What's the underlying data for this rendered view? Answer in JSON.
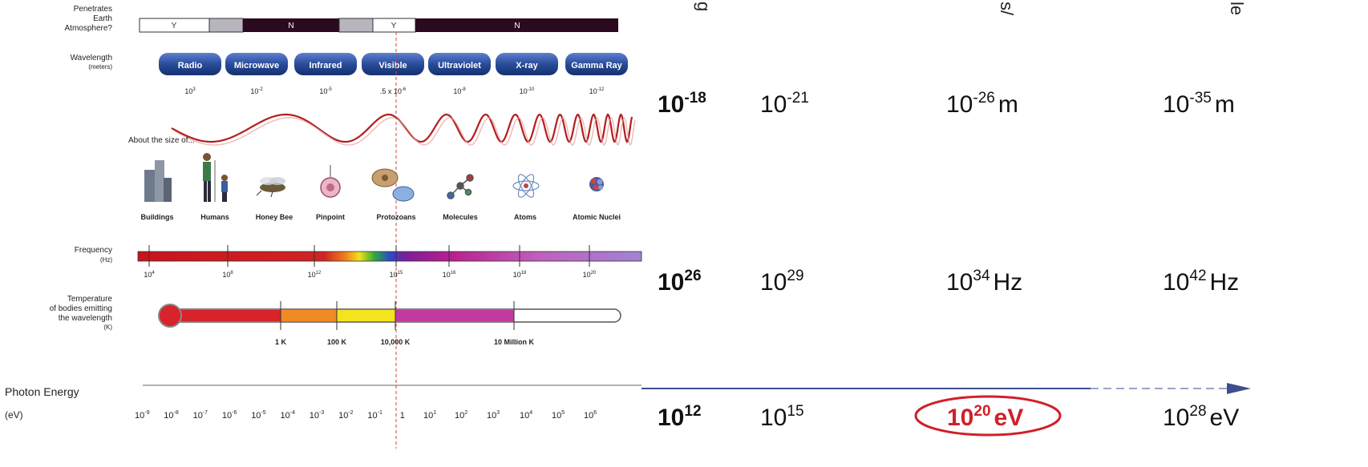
{
  "atmosphere": {
    "label_lines": [
      "Penetrates",
      "Earth",
      "Atmosphere?"
    ],
    "segments": [
      "Y",
      "",
      "N",
      "",
      "Y",
      "N"
    ]
  },
  "wavelength": {
    "label": "Wavelength",
    "unit": "(meters)",
    "bands": [
      "Radio",
      "Microwave",
      "Infrared",
      "Visible",
      "Ultraviolet",
      "X-ray",
      "Gamma Ray"
    ],
    "values": [
      {
        "base": "10",
        "exp": "3"
      },
      {
        "base": "10",
        "exp": "-2"
      },
      {
        "base": "10",
        "exp": "-5"
      },
      {
        "base": ".5 x 10",
        "exp": "-6"
      },
      {
        "base": "10",
        "exp": "-8"
      },
      {
        "base": "10",
        "exp": "-10"
      },
      {
        "base": "10",
        "exp": "-12"
      }
    ]
  },
  "size_label": "About the size of...",
  "objects": [
    "Buildings",
    "Humans",
    "Honey Bee",
    "Pinpoint",
    "Protozoans",
    "Molecules",
    "Atoms",
    "Atomic Nuclei"
  ],
  "frequency": {
    "label": "Frequency",
    "unit": "(Hz)",
    "ticks": [
      {
        "base": "10",
        "exp": "4"
      },
      {
        "base": "10",
        "exp": "8"
      },
      {
        "base": "10",
        "exp": "12"
      },
      {
        "base": "10",
        "exp": "15"
      },
      {
        "base": "10",
        "exp": "16"
      },
      {
        "base": "10",
        "exp": "18"
      },
      {
        "base": "10",
        "exp": "20"
      }
    ]
  },
  "temperature": {
    "label_lines": [
      "Temperature",
      "of bodies emitting",
      "the wavelength"
    ],
    "unit": "(K)",
    "marks": [
      "1 K",
      "100 K",
      "10,000 K",
      "10 Million K"
    ]
  },
  "photon": {
    "label": "Photon Energy",
    "unit": "(eV)",
    "exps": [
      "-9",
      "-8",
      "-7",
      "-6",
      "-5",
      "-4",
      "-3",
      "-2",
      "-1"
    ],
    "one": "1",
    "pos_exps": [
      "1",
      "2",
      "3",
      "4",
      "5",
      "6"
    ]
  },
  "extension": {
    "top_fragments": [
      "g",
      "s/",
      "le"
    ],
    "wavelength": [
      {
        "base": "10",
        "exp": "-18",
        "unit": ""
      },
      {
        "base": "10",
        "exp": "-21",
        "unit": ""
      },
      {
        "base": "10",
        "exp": "-26",
        "unit": "m"
      },
      {
        "base": "10",
        "exp": "-35",
        "unit": "m"
      }
    ],
    "frequency": [
      {
        "base": "10",
        "exp": "26",
        "unit": ""
      },
      {
        "base": "10",
        "exp": "29",
        "unit": ""
      },
      {
        "base": "10",
        "exp": "34",
        "unit": "Hz"
      },
      {
        "base": "10",
        "exp": "42",
        "unit": "Hz"
      }
    ],
    "energy": [
      {
        "base": "10",
        "exp": "12",
        "unit": ""
      },
      {
        "base": "10",
        "exp": "15",
        "unit": ""
      },
      {
        "base": "10",
        "exp": "20",
        "unit": "eV"
      },
      {
        "base": "10",
        "exp": "28",
        "unit": "eV"
      }
    ],
    "highlight_color": "#d0202a"
  },
  "colors": {
    "band_fill": "#2a4c9a",
    "dark_segment": "#2b0a1f",
    "gray_segment": "#b8b6bc",
    "wave": "#b21e1e",
    "axis": "#3d4f8f",
    "marker_line": "#d04040"
  }
}
